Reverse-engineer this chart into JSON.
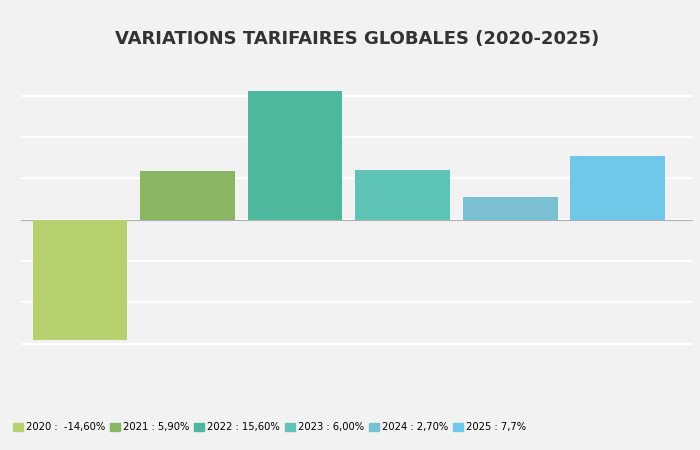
{
  "title": "VARIATIONS TARIFAIRES GLOBALES (2020-2025)",
  "categories": [
    "2020",
    "2021",
    "2022",
    "2023",
    "2024",
    "2025"
  ],
  "values": [
    -14.6,
    5.9,
    15.6,
    6.0,
    2.7,
    7.7
  ],
  "colors": [
    "#b5d16e",
    "#8ab563",
    "#4db89e",
    "#5ec4b8",
    "#7bbfd4",
    "#70c8e8"
  ],
  "legend_labels": [
    "2020 :  -14,60%",
    "2021 : 5,90%",
    "2022 : 15,60%",
    "2023 : 6,00%",
    "2024 : 2,70%",
    "2025 : 7,7%"
  ],
  "ylim": [
    -17,
    19
  ],
  "background_color": "#f2f2f2",
  "title_fontsize": 13,
  "bar_width": 0.88
}
